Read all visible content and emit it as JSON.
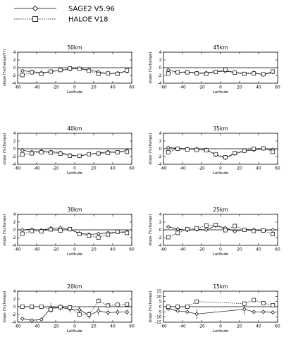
{
  "chart_data": {
    "type": "line",
    "legend": {
      "placement": "top-left",
      "entries": [
        {
          "label": "SAGE2 V5.96",
          "line": "solid",
          "marker": "diamond",
          "color": "#000000"
        },
        {
          "label": "HALOE V18",
          "line": "dotted",
          "marker": "square",
          "color": "#000000"
        }
      ]
    },
    "panels": [
      {
        "title": "50km",
        "xlabel": "Latitude",
        "ylabel": "slope (%change/Yr)",
        "xlim": [
          -60,
          60
        ],
        "ylim": [
          -4,
          4
        ],
        "xticks": [
          -60,
          -40,
          -20,
          0,
          20,
          40,
          60
        ],
        "yticks": [
          -4,
          -2,
          0,
          2,
          4
        ],
        "series": [
          {
            "name": "SAGE2 V5.96",
            "x": [
              -55,
              -45,
              -35,
              -25,
              -15,
              -5,
              5,
              15,
              25,
              35,
              45,
              55
            ],
            "y": [
              -0.8,
              -1.0,
              -1.3,
              -1.0,
              -0.7,
              -0.4,
              -0.2,
              -0.6,
              -1.1,
              -1.5,
              -1.4,
              -0.9
            ]
          },
          {
            "name": "HALOE V18",
            "x": [
              -55,
              -45,
              -35,
              -25,
              -15,
              -5,
              5,
              15,
              25,
              35,
              45,
              55
            ],
            "y": [
              -1.9,
              -1.2,
              -1.6,
              -1.0,
              -0.6,
              -0.2,
              -0.3,
              -0.8,
              -1.6,
              -1.5,
              -1.6,
              -0.7
            ]
          }
        ]
      },
      {
        "title": "45km",
        "xlabel": "Latitude",
        "ylabel": "slope (%change)",
        "xlim": [
          -60,
          60
        ],
        "ylim": [
          -4,
          4
        ],
        "xticks": [
          -60,
          -40,
          -20,
          0,
          20,
          40,
          60
        ],
        "yticks": [
          -4,
          -2,
          0,
          2,
          4
        ],
        "series": [
          {
            "name": "SAGE2 V5.96",
            "x": [
              -55,
              -45,
              -35,
              -25,
              -15,
              -5,
              5,
              15,
              25,
              35,
              45,
              55
            ],
            "y": [
              -0.6,
              -1.2,
              -1.1,
              -1.3,
              -1.3,
              -1.0,
              -0.9,
              -1.2,
              -1.5,
              -1.3,
              -1.8,
              -1.2
            ]
          },
          {
            "name": "HALOE V18",
            "x": [
              -55,
              -45,
              -35,
              -25,
              -15,
              -5,
              5,
              15,
              25,
              35,
              45,
              55
            ],
            "y": [
              -1.5,
              -1.2,
              -1.2,
              -1.5,
              -1.6,
              -1.1,
              -0.5,
              -1.3,
              -1.6,
              -1.5,
              -1.7,
              -1.0
            ]
          }
        ]
      },
      {
        "title": "40km",
        "xlabel": "Latitude",
        "ylabel": "slope (%change)",
        "xlim": [
          -60,
          60
        ],
        "ylim": [
          -4,
          4
        ],
        "xticks": [
          -60,
          -40,
          -20,
          0,
          20,
          40,
          60
        ],
        "yticks": [
          -4,
          -2,
          0,
          2,
          4
        ],
        "series": [
          {
            "name": "SAGE2 V5.96",
            "x": [
              -55,
              -45,
              -35,
              -25,
              -15,
              -5,
              5,
              15,
              25,
              35,
              45,
              55
            ],
            "y": [
              -0.4,
              -0.8,
              -0.6,
              -0.8,
              -1.0,
              -1.6,
              -1.9,
              -1.4,
              -1.1,
              -0.8,
              -0.9,
              -0.4
            ]
          },
          {
            "name": "HALOE V18",
            "x": [
              -55,
              -45,
              -35,
              -25,
              -15,
              -5,
              5,
              15,
              25,
              35,
              45,
              55
            ],
            "y": [
              -1.5,
              -1.2,
              -0.9,
              -1.0,
              -1.3,
              -1.8,
              -1.8,
              -1.4,
              -1.2,
              -1.1,
              -0.9,
              -0.8
            ]
          }
        ]
      },
      {
        "title": "35km",
        "xlabel": "Latitude",
        "ylabel": "slope (%change)",
        "xlim": [
          -60,
          60
        ],
        "ylim": [
          -4,
          4
        ],
        "xticks": [
          -60,
          -40,
          -20,
          0,
          20,
          40,
          60
        ],
        "yticks": [
          -4,
          -2,
          0,
          2,
          4
        ],
        "series": [
          {
            "name": "SAGE2 V5.96",
            "x": [
              -55,
              -45,
              -35,
              -25,
              -15,
              -5,
              5,
              15,
              25,
              35,
              45,
              55
            ],
            "y": [
              0.3,
              0.1,
              0.0,
              0.0,
              -0.2,
              -1.6,
              -2.4,
              -1.3,
              -0.6,
              -0.3,
              0.0,
              -0.2
            ]
          },
          {
            "name": "HALOE V18",
            "x": [
              -55,
              -45,
              -35,
              -25,
              -15,
              -5,
              5,
              15,
              25,
              35,
              45,
              55
            ],
            "y": [
              -0.9,
              0.0,
              -0.2,
              -0.3,
              -0.4,
              -1.4,
              -2.2,
              -1.1,
              -0.5,
              0.0,
              0.1,
              -0.8
            ]
          }
        ]
      },
      {
        "title": "30km",
        "xlabel": "Latitude",
        "ylabel": "slope (%change)",
        "xlim": [
          -60,
          60
        ],
        "ylim": [
          -4,
          4
        ],
        "xticks": [
          -60,
          -40,
          -20,
          0,
          20,
          40,
          60
        ],
        "yticks": [
          -4,
          -2,
          0,
          2,
          4
        ],
        "series": [
          {
            "name": "SAGE2 V5.96",
            "x": [
              -55,
              -45,
              -35,
              -25,
              -15,
              -5,
              5,
              15,
              25,
              35,
              45,
              55
            ],
            "y": [
              0.0,
              0.1,
              -0.1,
              0.4,
              0.5,
              0.1,
              -0.9,
              -1.2,
              -1.0,
              -0.8,
              -0.6,
              -0.5
            ]
          },
          {
            "name": "HALOE V18",
            "x": [
              -55,
              -45,
              -35,
              -25,
              -15,
              -5,
              5,
              15,
              25,
              35,
              45,
              55
            ],
            "y": [
              -1.0,
              -0.3,
              -0.4,
              0.1,
              -0.2,
              0.2,
              -1.1,
              -1.5,
              -2.0,
              -1.2,
              -0.5,
              -0.8
            ]
          }
        ]
      },
      {
        "title": "25km",
        "xlabel": "Latitude",
        "ylabel": "slope (%change)",
        "xlim": [
          -60,
          60
        ],
        "ylim": [
          -4,
          4
        ],
        "xticks": [
          -60,
          -40,
          -20,
          0,
          20,
          40,
          60
        ],
        "yticks": [
          -4,
          -2,
          0,
          2,
          4
        ],
        "series": [
          {
            "name": "SAGE2 V5.96",
            "x": [
              -55,
              -45,
              -35,
              -25,
              -15,
              -5,
              5,
              15,
              25,
              35,
              45,
              55
            ],
            "y": [
              0.8,
              0.2,
              -0.1,
              0.1,
              0.0,
              1.1,
              0.5,
              -0.4,
              0.1,
              0.0,
              -0.1,
              0.0
            ]
          },
          {
            "name": "HALOE V18",
            "x": [
              -55,
              -45,
              -35,
              -25,
              -15,
              -5,
              5,
              15,
              25,
              35,
              45,
              55
            ],
            "y": [
              -1.9,
              -0.8,
              0.2,
              0.4,
              1.1,
              1.3,
              -0.1,
              1.0,
              0.0,
              -0.3,
              -0.2,
              -1.1
            ]
          }
        ]
      },
      {
        "title": "20km",
        "xlabel": "Latitude",
        "ylabel": "slope (%change)",
        "xlim": [
          -60,
          60
        ],
        "ylim": [
          -4,
          4
        ],
        "xticks": [
          -60,
          -40,
          -20,
          0,
          20,
          40,
          60
        ],
        "yticks": [
          -4,
          -2,
          0,
          2,
          4
        ],
        "series": [
          {
            "name": "SAGE2 V5.96",
            "x": [
              -55,
              -45,
              -35,
              -25,
              -15,
              -5,
              5,
              15,
              25,
              35,
              45,
              55
            ],
            "y": [
              -3.1,
              -3.5,
              -3.3,
              -0.3,
              -0.2,
              -0.6,
              -0.8,
              -2.2,
              -1.1,
              -1.5,
              -1.4,
              -1.4
            ],
            "yerr": [
              0.4,
              0.4,
              0.4,
              1.3,
              0.8,
              0.9,
              0.9,
              1.0,
              1.1,
              0.8,
              0.7,
              0.7
            ]
          },
          {
            "name": "HALOE V18",
            "x": [
              -55,
              -45,
              -35,
              -25,
              -15,
              -5,
              5,
              15,
              25,
              35,
              45,
              55
            ],
            "y": [
              0.0,
              0.0,
              0.0,
              -0.7,
              -0.1,
              -0.2,
              -2.0,
              -2.0,
              1.5,
              0.3,
              0.5,
              0.6
            ],
            "yerr": [
              0.3,
              0.3,
              0.3,
              0.6,
              0.6,
              0.7,
              0.6,
              0.8,
              0.6,
              0.6,
              0.5,
              0.5
            ]
          }
        ]
      },
      {
        "title": "15km",
        "xlabel": "Latitude",
        "ylabel": "slope (%change)",
        "xlim": [
          -60,
          60
        ],
        "ylim": [
          -15,
          15
        ],
        "xticks": [
          -60,
          -40,
          -20,
          0,
          20,
          40,
          60
        ],
        "yticks": [
          -15,
          -10,
          -5,
          0,
          5,
          10,
          15
        ],
        "series": [
          {
            "name": "SAGE2 V5.96",
            "x": [
              -55,
              -45,
              -35,
              -25,
              25,
              35,
              45,
              55
            ],
            "y": [
              -2.0,
              -4.0,
              -5.0,
              -7.0,
              -2.5,
              -5.0,
              -5.0,
              -5.5
            ],
            "yerr": [
              0.5,
              0.5,
              1.0,
              5.0,
              5.0,
              1.0,
              0.8,
              0.8
            ]
          },
          {
            "name": "HALOE V18",
            "x": [
              -55,
              -45,
              -35,
              -25,
              25,
              35,
              45,
              55
            ],
            "y": [
              0.0,
              0.0,
              0.0,
              5.0,
              3.0,
              6.5,
              3.5,
              1.5
            ],
            "yerr": [
              0.5,
              0.5,
              0.5,
              1.5,
              1.5,
              1.5,
              1.0,
              0.8
            ]
          }
        ]
      }
    ]
  }
}
